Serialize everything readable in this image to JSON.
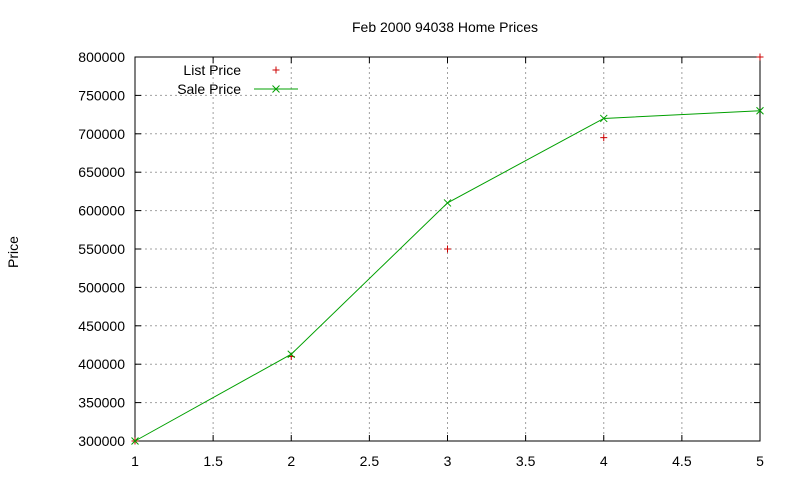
{
  "chart_data": {
    "type": "line",
    "title": "Feb 2000 94038 Home Prices",
    "xlabel": "",
    "ylabel": "Price",
    "xlim": [
      1,
      5
    ],
    "ylim": [
      300000,
      800000
    ],
    "x_ticks": [
      "1",
      "1.5",
      "2",
      "2.5",
      "3",
      "3.5",
      "4",
      "4.5",
      "5"
    ],
    "y_ticks": [
      "300000",
      "350000",
      "400000",
      "450000",
      "500000",
      "550000",
      "600000",
      "650000",
      "700000",
      "750000",
      "800000"
    ],
    "grid": true,
    "legend_position": "top-left",
    "series": [
      {
        "name": "List Price",
        "style": "points",
        "marker": "plus",
        "color": "#cc0000",
        "x": [
          1,
          2,
          3,
          4,
          5
        ],
        "values": [
          300000,
          410000,
          550000,
          695000,
          800000
        ]
      },
      {
        "name": "Sale Price",
        "style": "linespoints",
        "marker": "cross",
        "color": "#00a000",
        "x": [
          1,
          2,
          3,
          4,
          5
        ],
        "values": [
          300000,
          413000,
          610000,
          720000,
          730000
        ]
      }
    ]
  }
}
